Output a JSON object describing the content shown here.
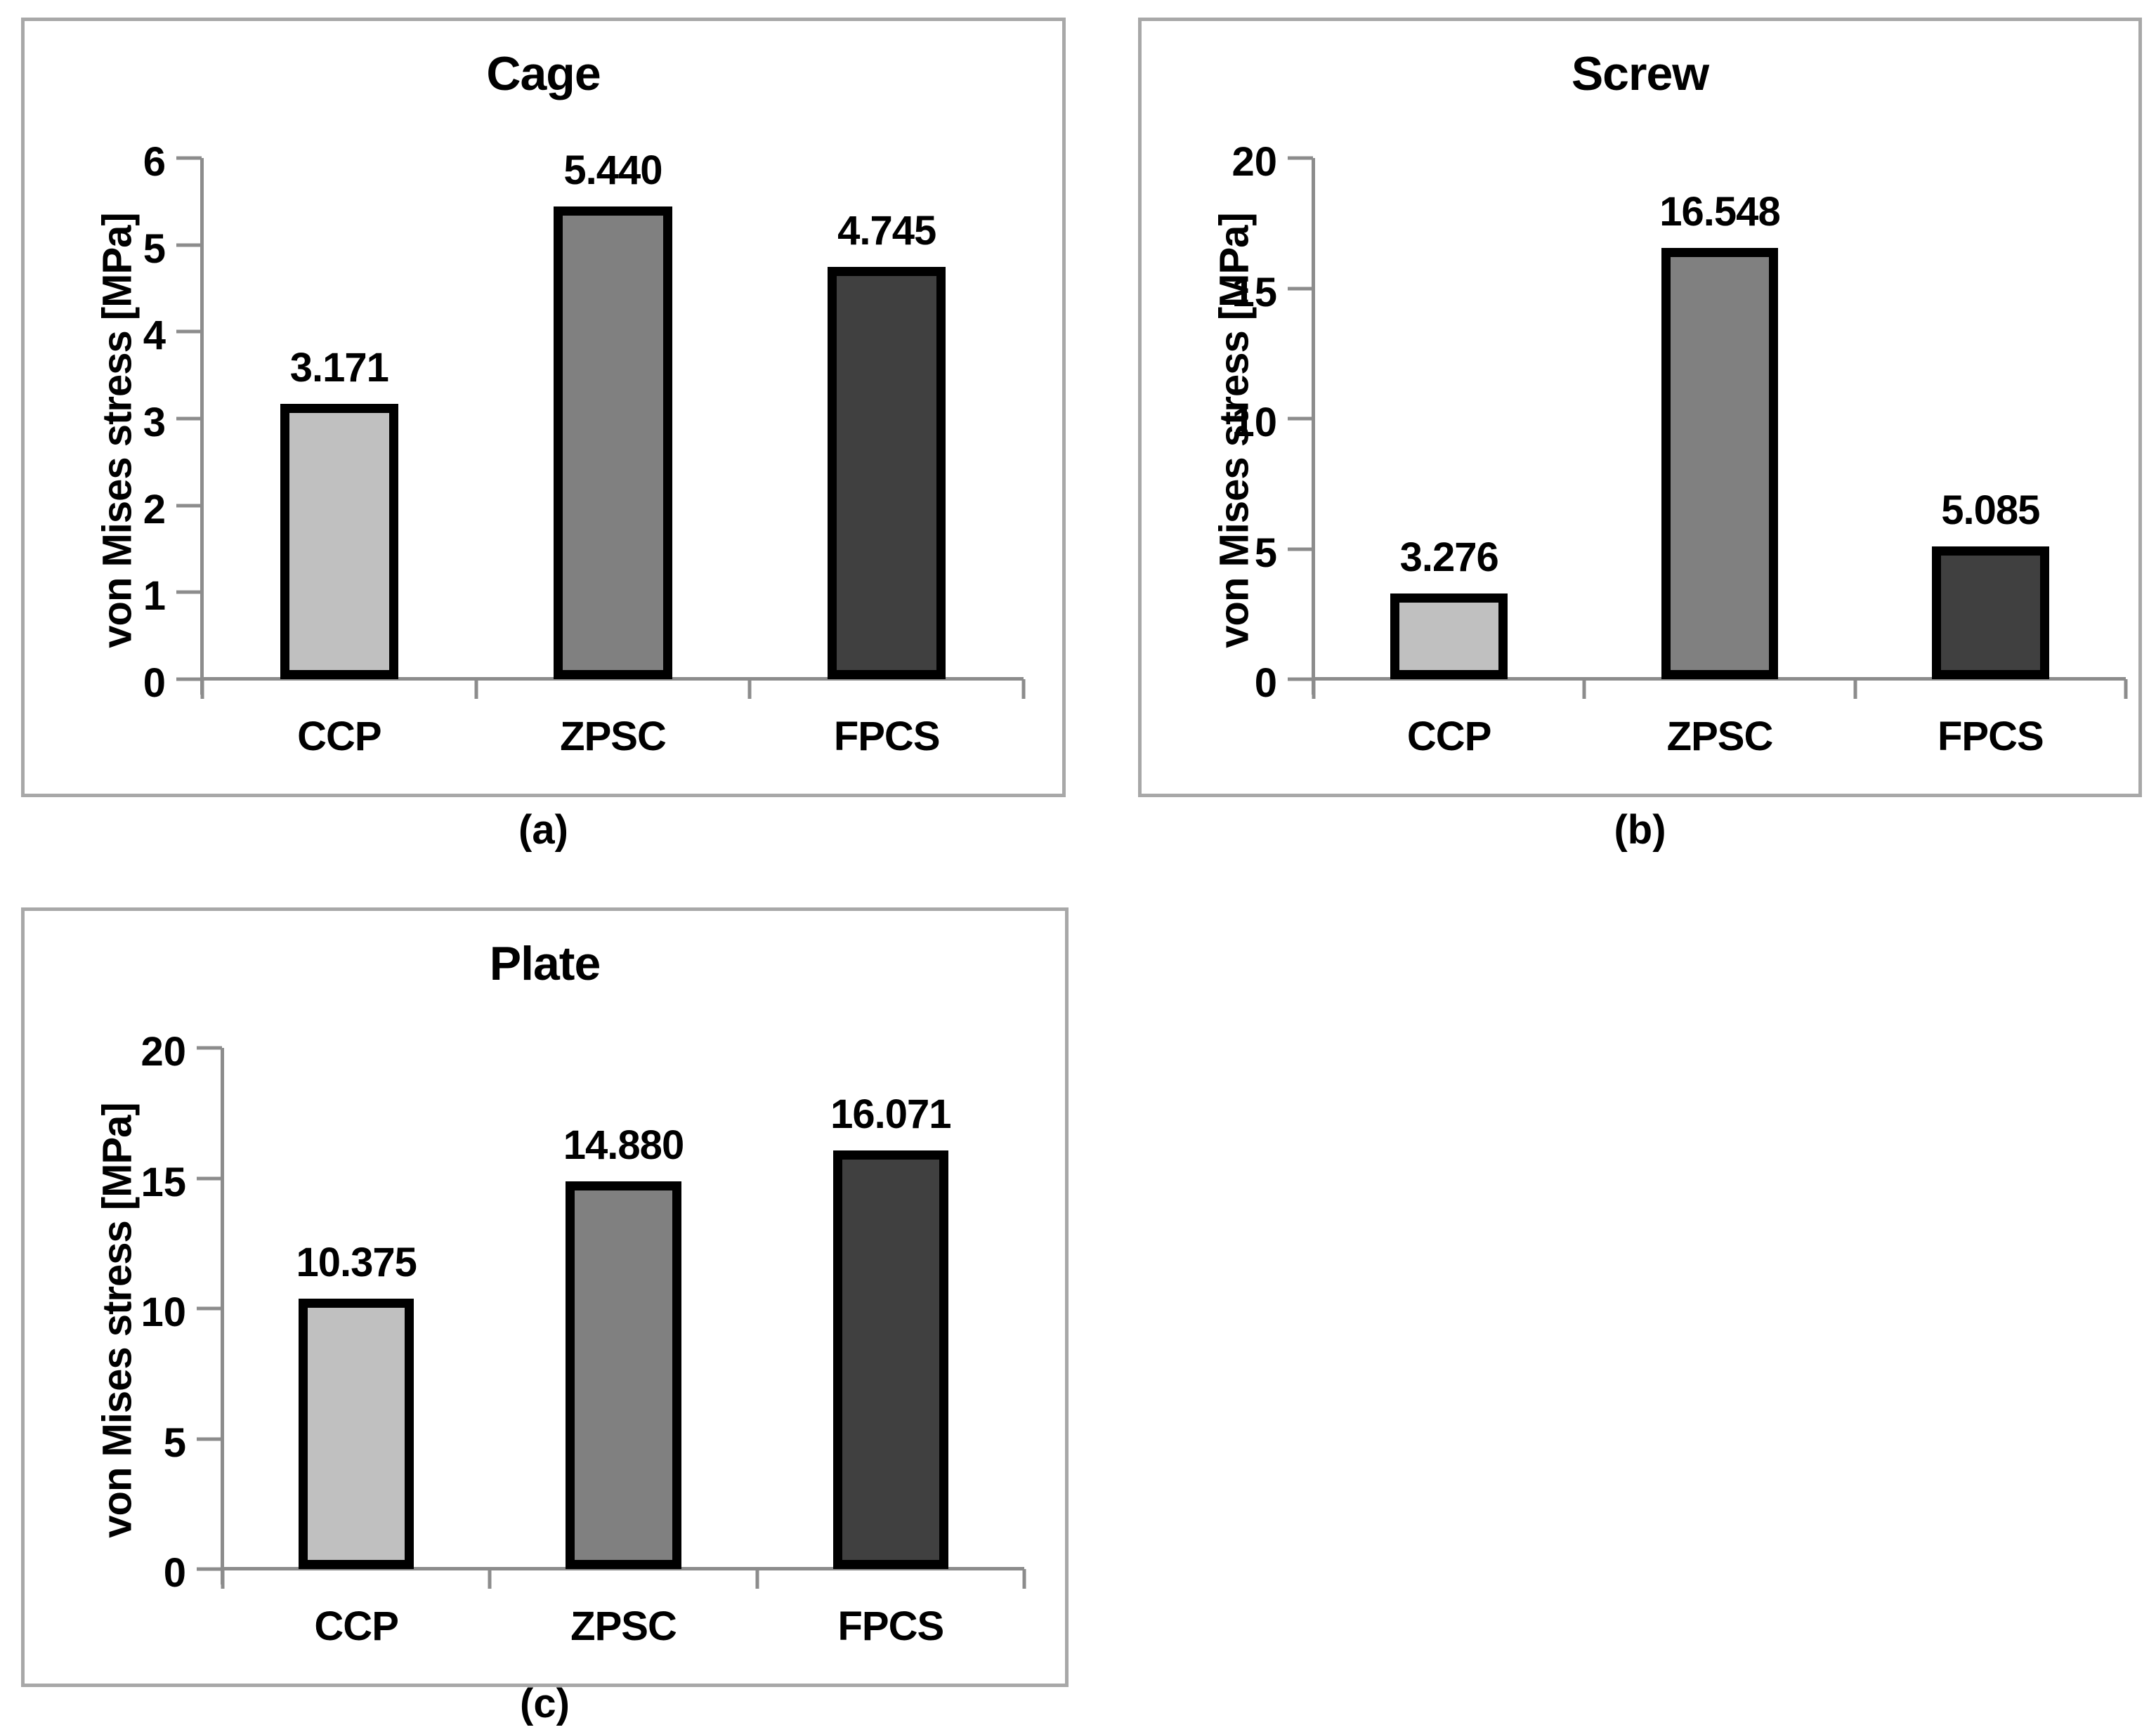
{
  "figure": {
    "background": "#ffffff",
    "text_color": "#000000",
    "panel_border_color": "#a8a8a8",
    "axis_line_color": "#8c8c8c",
    "bar_border_color": "#000000"
  },
  "chart_data": [
    {
      "type": "bar",
      "title": "Cage",
      "panel_label": "(a)",
      "xlabel": "",
      "ylabel": "von Mises stress [MPa]",
      "categories": [
        "CCP",
        "ZPSC",
        "FPCS"
      ],
      "values": [
        3.171,
        5.44,
        4.745
      ],
      "value_labels": [
        "3.171",
        "5.440",
        "4.745"
      ],
      "bar_colors": [
        "#c0c0c0",
        "#808080",
        "#404040"
      ],
      "ylim": [
        0,
        6
      ],
      "yticks": [
        0,
        1,
        2,
        3,
        4,
        5,
        6
      ],
      "grid": false,
      "legend": "none"
    },
    {
      "type": "bar",
      "title": "Screw",
      "panel_label": "(b)",
      "xlabel": "",
      "ylabel": "von Mises stress [MPa]",
      "categories": [
        "CCP",
        "ZPSC",
        "FPCS"
      ],
      "values": [
        3.276,
        16.548,
        5.085
      ],
      "value_labels": [
        "3.276",
        "16.548",
        "5.085"
      ],
      "bar_colors": [
        "#c0c0c0",
        "#808080",
        "#404040"
      ],
      "ylim": [
        0,
        20
      ],
      "yticks": [
        0,
        5,
        10,
        15,
        20
      ],
      "grid": false,
      "legend": "none"
    },
    {
      "type": "bar",
      "title": "Plate",
      "panel_label": "(c)",
      "xlabel": "",
      "ylabel": "von Mises stress [MPa]",
      "categories": [
        "CCP",
        "ZPSC",
        "FPCS"
      ],
      "values": [
        10.375,
        14.88,
        16.071
      ],
      "value_labels": [
        "10.375",
        "14.880",
        "16.071"
      ],
      "bar_colors": [
        "#c0c0c0",
        "#808080",
        "#404040"
      ],
      "ylim": [
        0,
        20
      ],
      "yticks": [
        0,
        5,
        10,
        15,
        20
      ],
      "grid": false,
      "legend": "none"
    }
  ]
}
